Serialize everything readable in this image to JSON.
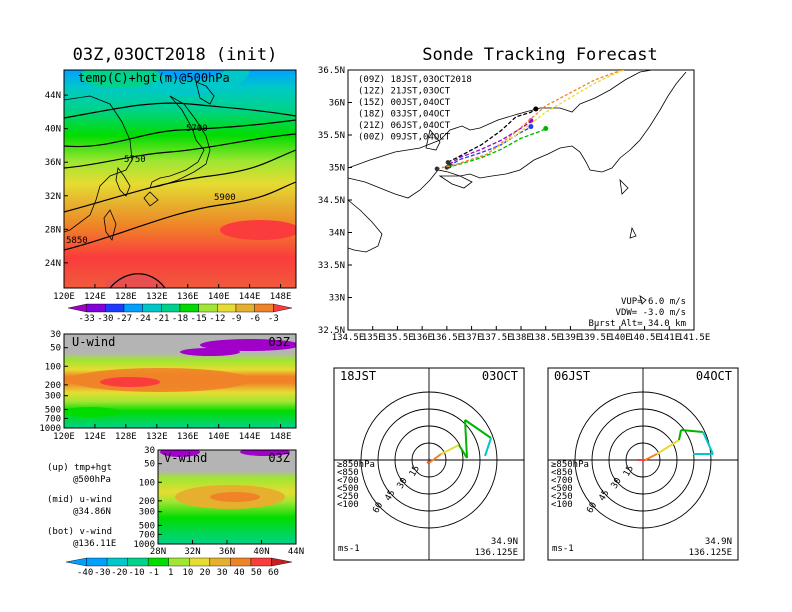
{
  "left_title": "03Z,03OCT2018 (init)",
  "main_title": "Sonde Tracking Forecast",
  "map500": {
    "label": "temp(C)+hgt(m)@500hPa",
    "contour_labels": [
      "5700",
      "5750",
      "5900",
      "5850"
    ],
    "lon_ticks": [
      "120E",
      "124E",
      "128E",
      "132E",
      "136E",
      "140E",
      "144E",
      "148E"
    ],
    "lat_ticks": [
      "44N",
      "40N",
      "36N",
      "32N",
      "28N",
      "24N"
    ]
  },
  "temp_colorbar": {
    "labels": [
      "-33",
      "-30",
      "-27",
      "-24",
      "-21",
      "-18",
      "-15",
      "-12",
      "-9",
      "-6",
      "-3"
    ],
    "colors": [
      "#a000c8",
      "#8200dc",
      "#1e3cff",
      "#00a0ff",
      "#00c8c8",
      "#00d28c",
      "#00dc00",
      "#a0e632",
      "#e6dc32",
      "#e6af2d",
      "#f08228",
      "#fa3c3c"
    ]
  },
  "uwind": {
    "label": "U-wind",
    "time": "03Z",
    "p_ticks": [
      "30",
      "50",
      "100",
      "200",
      "300",
      "500",
      "700",
      "1000"
    ],
    "lon_ticks": [
      "120E",
      "124E",
      "128E",
      "132E",
      "136E",
      "140E",
      "144E",
      "148E"
    ]
  },
  "vwind": {
    "label": "V-wind",
    "time": "03Z",
    "p_ticks": [
      "30",
      "50",
      "100",
      "200",
      "300",
      "500",
      "700",
      "1000"
    ],
    "lat_ticks": [
      "28N",
      "32N",
      "36N",
      "40N",
      "44N"
    ]
  },
  "notes": {
    "up": [
      "(up) tmp+hgt",
      "@500hPa"
    ],
    "mid": [
      "(mid) u-wind",
      "@34.86N"
    ],
    "bot": [
      "(bot) v-wind",
      "@136.11E"
    ]
  },
  "wind_colorbar": {
    "labels": [
      "-40",
      "-30",
      "-20",
      "-10",
      "-1",
      "1",
      "10",
      "20",
      "30",
      "40",
      "50",
      "60"
    ],
    "colors": [
      "#00a0ff",
      "#00c8c8",
      "#00d28c",
      "#00dc00",
      "#a0e632",
      "#e6dc32",
      "#e6af2d",
      "#f08228",
      "#fa3c3c",
      "#c81e1e"
    ]
  },
  "tracking_map": {
    "lat_ticks": [
      "36.5N",
      "36N",
      "35.5N",
      "35N",
      "34.5N",
      "34N",
      "33.5N",
      "33N",
      "32.5N"
    ],
    "lon_ticks": [
      "134.5E",
      "135E",
      "135.5E",
      "136E",
      "136.5E",
      "137E",
      "137.5E",
      "138E",
      "138.5E",
      "139E",
      "139.5E",
      "140E",
      "140.5E",
      "141E",
      "141.5E"
    ],
    "legend": [
      {
        "text": "(09Z) 18JST,03OCT2018",
        "color": "#000000"
      },
      {
        "text": "(12Z) 21JST,03OCT",
        "color": "#a000c8"
      },
      {
        "text": "(15Z) 00JST,04OCT",
        "color": "#1e3cff"
      },
      {
        "text": "(18Z) 03JST,04OCT",
        "color": "#00b400"
      },
      {
        "text": "(21Z) 06JST,04OCT",
        "color": "#e6dc32"
      },
      {
        "text": "(00Z) 09JST,04OCT",
        "color": "#f08228"
      }
    ],
    "params": [
      "VUP= 6.0 m/s",
      "VDW= -3.0 m/s",
      "Burst Alt= 34.0 km"
    ]
  },
  "hodo1": {
    "time": "18JST",
    "date": "03OCT",
    "rings": [
      "15",
      "30",
      "45",
      "60"
    ],
    "levels": [
      "≥850hPa",
      "<850",
      "<700",
      "<500",
      "<250",
      "<100"
    ],
    "level_colors": [
      "#fa3c3c",
      "#f08228",
      "#e6dc32",
      "#00b400",
      "#1e3cff",
      "#00c8c8"
    ],
    "unit": "ms-1",
    "loc": [
      "34.9N",
      "136.125E"
    ]
  },
  "hodo2": {
    "time": "06JST",
    "date": "04OCT",
    "rings": [
      "15",
      "30",
      "45",
      "60"
    ],
    "levels": [
      "≥850hPa",
      "<850",
      "<700",
      "<500",
      "<250",
      "<100"
    ],
    "level_colors": [
      "#fa3c3c",
      "#f08228",
      "#e6dc32",
      "#00b400",
      "#1e3cff",
      "#00c8c8"
    ],
    "unit": "ms-1",
    "loc": [
      "34.9N",
      "136.125E"
    ]
  },
  "chart_data": [
    {
      "type": "heatmap",
      "title": "03Z,03OCT2018 (init)",
      "xlabel": "",
      "ylabel": "",
      "xlim": [
        120,
        150
      ],
      "ylim": [
        21,
        47
      ],
      "field": "temp(C)+hgt(m)@500hPa",
      "contours": [
        {
          "value": 5700,
          "label_pos": [
            135.5,
            40.3
          ]
        },
        {
          "value": 5750,
          "label_pos": [
            129,
            37.3
          ]
        },
        {
          "value": 5900,
          "label_pos": [
            138,
            33.1
          ]
        },
        {
          "value": 5850,
          "label_pos": [
            121.5,
            28.8
          ]
        }
      ]
    },
    {
      "type": "line",
      "title": "Sonde Tracking Forecast",
      "xlim": [
        134.5,
        141.5
      ],
      "ylim": [
        32.5,
        36.5
      ],
      "series": [
        {
          "name": "(09Z) 18JST,03OCT2018",
          "x": [
            136.52,
            136.75,
            137.2,
            137.6,
            137.9,
            138.2,
            138.3
          ],
          "y": [
            35.08,
            35.17,
            35.35,
            35.57,
            35.78,
            35.85,
            35.9
          ]
        },
        {
          "name": "(12Z) 21JST,03OCT",
          "x": [
            136.55,
            136.75,
            137.2,
            137.6,
            137.95,
            138.15,
            138.2
          ],
          "y": [
            35.05,
            35.15,
            35.28,
            35.42,
            35.58,
            35.68,
            35.72
          ]
        },
        {
          "name": "(15Z) 00JST,04OCT",
          "x": [
            136.55,
            136.75,
            137.2,
            137.6,
            137.95,
            138.15,
            138.2
          ],
          "y": [
            35.02,
            35.12,
            35.23,
            35.35,
            35.52,
            35.6,
            35.63
          ]
        },
        {
          "name": "(18Z) 03JST,04OCT",
          "x": [
            136.5,
            136.75,
            137.2,
            137.6,
            138.0,
            138.4,
            138.5
          ],
          "y": [
            35.0,
            35.05,
            35.15,
            35.28,
            35.45,
            35.56,
            35.6
          ]
        },
        {
          "name": "(21Z) 06JST,04OCT",
          "x": [
            136.3,
            136.7,
            137.3,
            137.9,
            138.5,
            139.5,
            140.2
          ],
          "y": [
            34.98,
            35.05,
            35.2,
            35.5,
            35.85,
            36.3,
            36.55
          ]
        },
        {
          "name": "(00Z) 09JST,04OCT",
          "x": [
            136.3,
            136.7,
            137.3,
            137.9,
            138.5,
            139.5,
            140.4
          ],
          "y": [
            34.98,
            35.05,
            35.2,
            35.55,
            35.95,
            36.35,
            36.6
          ]
        }
      ]
    }
  ]
}
